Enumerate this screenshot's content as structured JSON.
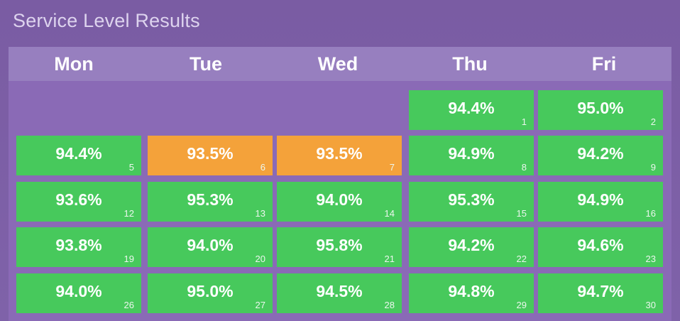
{
  "title": "Service Level Results",
  "colors": {
    "background": "#7d5fa6",
    "header": "#977fbf",
    "good": "#47c95c",
    "warning": "#f4a23a"
  },
  "days": [
    "Mon",
    "Tue",
    "Wed",
    "Thu",
    "Fri"
  ],
  "weeks": [
    [
      null,
      null,
      null,
      {
        "value": "94.4%",
        "date": "1",
        "status": "good"
      },
      {
        "value": "95.0%",
        "date": "2",
        "status": "good"
      }
    ],
    [
      {
        "value": "94.4%",
        "date": "5",
        "status": "good"
      },
      {
        "value": "93.5%",
        "date": "6",
        "status": "warning"
      },
      {
        "value": "93.5%",
        "date": "7",
        "status": "warning"
      },
      {
        "value": "94.9%",
        "date": "8",
        "status": "good"
      },
      {
        "value": "94.2%",
        "date": "9",
        "status": "good"
      }
    ],
    [
      {
        "value": "93.6%",
        "date": "12",
        "status": "good"
      },
      {
        "value": "95.3%",
        "date": "13",
        "status": "good"
      },
      {
        "value": "94.0%",
        "date": "14",
        "status": "good"
      },
      {
        "value": "95.3%",
        "date": "15",
        "status": "good"
      },
      {
        "value": "94.9%",
        "date": "16",
        "status": "good"
      }
    ],
    [
      {
        "value": "93.8%",
        "date": "19",
        "status": "good"
      },
      {
        "value": "94.0%",
        "date": "20",
        "status": "good"
      },
      {
        "value": "95.8%",
        "date": "21",
        "status": "good"
      },
      {
        "value": "94.2%",
        "date": "22",
        "status": "good"
      },
      {
        "value": "94.6%",
        "date": "23",
        "status": "good"
      }
    ],
    [
      {
        "value": "94.0%",
        "date": "26",
        "status": "good"
      },
      {
        "value": "95.0%",
        "date": "27",
        "status": "good"
      },
      {
        "value": "94.5%",
        "date": "28",
        "status": "good"
      },
      {
        "value": "94.8%",
        "date": "29",
        "status": "good"
      },
      {
        "value": "94.7%",
        "date": "30",
        "status": "good"
      }
    ]
  ]
}
